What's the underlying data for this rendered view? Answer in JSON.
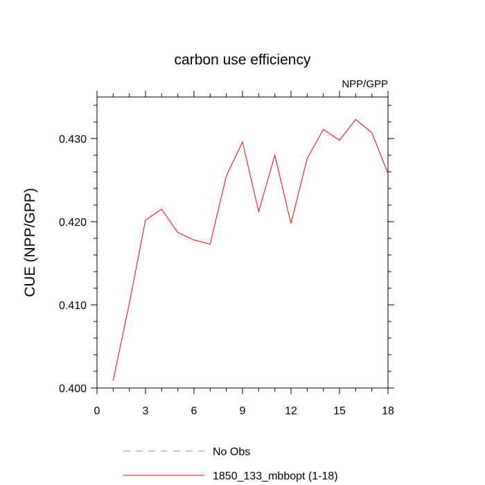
{
  "chart_data": {
    "type": "line",
    "title": "carbon use efficiency",
    "subtitle": "NPP/GPP",
    "y_label": "CUE  (NPP/GPP)",
    "x": [
      1,
      2,
      3,
      4,
      5,
      6,
      7,
      8,
      9,
      10,
      11,
      12,
      13,
      14,
      15,
      16,
      17,
      18
    ],
    "series": [
      {
        "name": "No Obs",
        "color": "#8080ff",
        "dashed": true,
        "values": [
          null,
          null,
          null,
          null,
          null,
          null,
          null,
          null,
          null,
          null,
          null,
          null,
          null,
          null,
          null,
          null,
          null,
          null
        ]
      },
      {
        "name": "1850_133_mbbopt (1-18)",
        "color": "#ff0000",
        "dashed": false,
        "values": [
          0.4009,
          0.4102,
          0.4202,
          0.4215,
          0.4187,
          0.4178,
          0.4173,
          0.4255,
          0.4296,
          0.4212,
          0.428,
          0.4198,
          0.4276,
          0.4311,
          0.4298,
          0.4323,
          0.4307,
          0.4258
        ]
      }
    ],
    "xlim": [
      0,
      18
    ],
    "xticks": [
      0,
      3,
      6,
      9,
      12,
      15,
      18
    ],
    "xminorticks": [
      1,
      2,
      4,
      5,
      7,
      8,
      10,
      11,
      13,
      14,
      16,
      17
    ],
    "ylim": [
      0.4,
      0.435
    ],
    "yticks": [
      {
        "value": 0.4,
        "label": "0.400"
      },
      {
        "value": 0.41,
        "label": "0.410"
      },
      {
        "value": 0.42,
        "label": "0.420"
      },
      {
        "value": 0.43,
        "label": "0.430"
      }
    ],
    "yminorticks": [
      0.402,
      0.404,
      0.406,
      0.408,
      0.412,
      0.414,
      0.416,
      0.418,
      0.422,
      0.424,
      0.426,
      0.428,
      0.432,
      0.434
    ]
  }
}
